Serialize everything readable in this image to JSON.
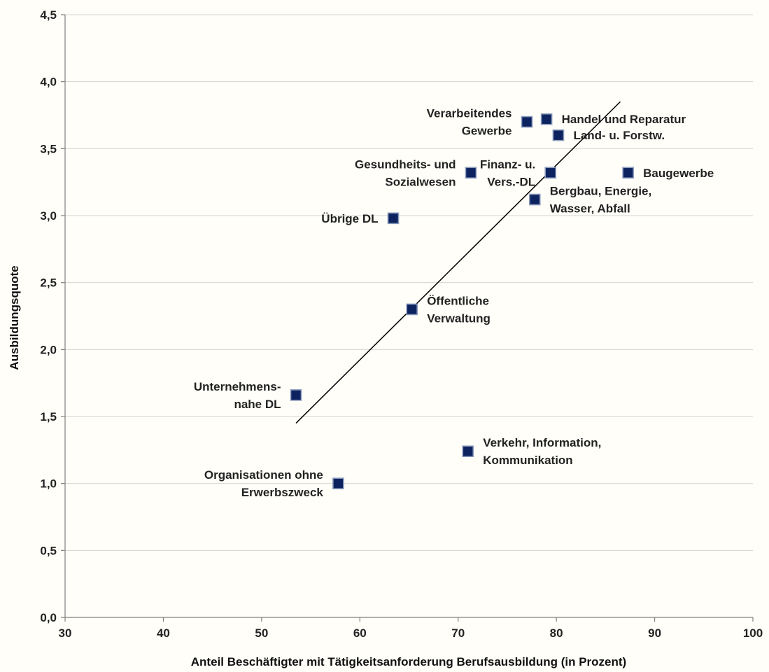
{
  "chart_data": {
    "type": "scatter",
    "xlabel": "Anteil Beschäftigter mit Tätigkeitsanforderung Berufsausbildung (in Prozent)",
    "ylabel": "Ausbildungsquote",
    "xlim": [
      30,
      100
    ],
    "ylim": [
      0,
      4.5
    ],
    "x_ticks": [
      30,
      40,
      50,
      60,
      70,
      80,
      90,
      100
    ],
    "x_tick_labels": [
      "30",
      "40",
      "50",
      "60",
      "70",
      "80",
      "90",
      "100"
    ],
    "y_ticks": [
      0,
      0.5,
      1,
      1.5,
      2,
      2.5,
      3,
      3.5,
      4,
      4.5
    ],
    "y_tick_labels": [
      "0,0",
      "0,5",
      "1,0",
      "1,5",
      "2,0",
      "2,5",
      "3,0",
      "3,5",
      "4,0",
      "4,5"
    ],
    "grid": "horizontal",
    "marker_color": "#0d2360",
    "points": [
      {
        "label": [
          "Handel und Reparatur"
        ],
        "x": 79.0,
        "y": 3.72,
        "anchor": "start"
      },
      {
        "label": [
          "Verarbeitendes",
          "Gewerbe"
        ],
        "x": 77.0,
        "y": 3.7,
        "anchor": "end"
      },
      {
        "label": [
          "Land- u. Forstw."
        ],
        "x": 80.2,
        "y": 3.6,
        "anchor": "start"
      },
      {
        "label": [
          "Gesundheits- und",
          "Sozialwesen"
        ],
        "x": 71.3,
        "y": 3.32,
        "anchor": "end"
      },
      {
        "label": [
          "Finanz- u.",
          "Vers.-DL"
        ],
        "x": 79.4,
        "y": 3.32,
        "anchor": "end"
      },
      {
        "label": [
          "Baugewerbe"
        ],
        "x": 87.3,
        "y": 3.32,
        "anchor": "start"
      },
      {
        "label": [
          "Bergbau, Energie,",
          "Wasser, Abfall"
        ],
        "x": 77.8,
        "y": 3.12,
        "anchor": "start"
      },
      {
        "label": [
          "Übrige DL"
        ],
        "x": 63.4,
        "y": 2.98,
        "anchor": "end"
      },
      {
        "label": [
          "Öffentliche",
          "Verwaltung"
        ],
        "x": 65.3,
        "y": 2.3,
        "anchor": "start"
      },
      {
        "label": [
          "Unternehmens-",
          "nahe DL"
        ],
        "x": 53.5,
        "y": 1.66,
        "anchor": "end"
      },
      {
        "label": [
          "Verkehr, Information,",
          "Kommunikation"
        ],
        "x": 71.0,
        "y": 1.24,
        "anchor": "start"
      },
      {
        "label": [
          "Organisationen ohne",
          "Erwerbszweck"
        ],
        "x": 57.8,
        "y": 1.0,
        "anchor": "end"
      }
    ],
    "trendline": {
      "x": [
        53.5,
        86.5
      ],
      "y": [
        1.45,
        3.85
      ]
    }
  }
}
